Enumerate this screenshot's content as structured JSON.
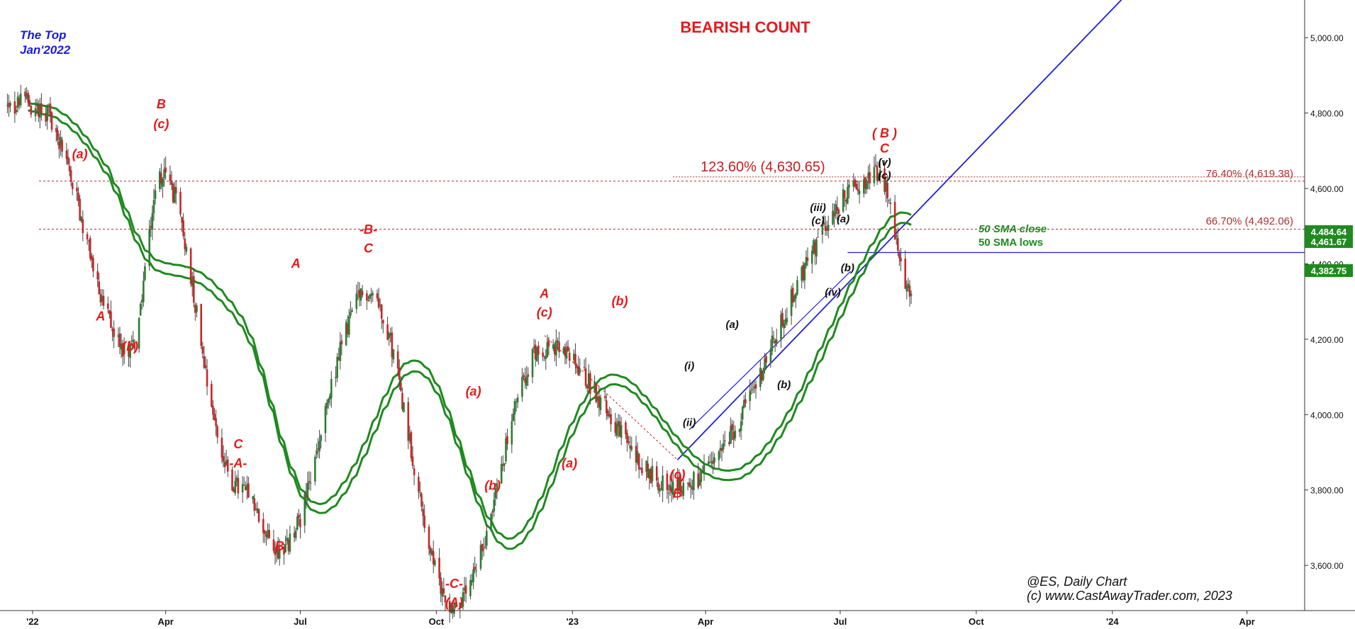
{
  "chart_data": {
    "type": "candlestick",
    "title": "BEARISH COUNT",
    "symbol_label": "@ES,  Daily Chart",
    "copyright": "(c) www.CastAwayTrader.com, 2023",
    "top_note": [
      "The Top",
      "Jan'2022"
    ],
    "y_ticks": [
      "5,000.00",
      "4,800.00",
      "4,600.00",
      "4,400.00",
      "4,200.00",
      "4,000.00",
      "3,800.00",
      "3,600.00"
    ],
    "x_ticks": [
      "'22",
      "Apr",
      "Jul",
      "Oct",
      "'23",
      "Apr",
      "Jul",
      "Oct",
      "'24",
      "Apr"
    ],
    "ylim": [
      3480,
      5100
    ],
    "price_labels": [
      "4,484.64",
      "4,461.67",
      "4,382.75"
    ],
    "fib_levels": [
      {
        "label": "76.40% (4,619.38)",
        "value": 4619.38
      },
      {
        "label": "66.70% (4,492.06)",
        "value": 4492.06
      },
      {
        "label": "123.60% (4,630.65)",
        "value": 4630.65
      }
    ],
    "sma_labels": [
      "50 SMA close",
      "50 SMA lows"
    ],
    "key_points": [
      {
        "date": "2022-01-04",
        "value": 4818
      },
      {
        "date": "2022-03-08",
        "value": 4170
      },
      {
        "date": "2022-03-29",
        "value": 4637
      },
      {
        "date": "2022-05-20",
        "value": 3807
      },
      {
        "date": "2022-06-17",
        "value": 3640
      },
      {
        "date": "2022-08-16",
        "value": 4325
      },
      {
        "date": "2022-10-13",
        "value": 3491
      },
      {
        "date": "2022-12-13",
        "value": 4180
      },
      {
        "date": "2023-03-13",
        "value": 3808
      },
      {
        "date": "2023-07-27",
        "value": 4634
      },
      {
        "date": "2023-08-18",
        "value": 4335
      }
    ],
    "wave_labels": [
      {
        "text": "B",
        "color": "red",
        "date": "2022-03-29",
        "value": 4812
      },
      {
        "text": "(c)",
        "color": "red",
        "date": "2022-03-29",
        "value": 4760
      },
      {
        "text": "(a)",
        "color": "red",
        "date": "2022-02-02",
        "value": 4680
      },
      {
        "text": "A",
        "color": "red",
        "date": "2022-02-16",
        "value": 4250
      },
      {
        "text": "(b)",
        "color": "red",
        "date": "2022-03-08",
        "value": 4170
      },
      {
        "text": "A",
        "color": "red",
        "date": "2022-06-28",
        "value": 4390
      },
      {
        "text": "C",
        "color": "red",
        "date": "2022-05-20",
        "value": 3910
      },
      {
        "text": "-A-",
        "color": "red",
        "date": "2022-05-20",
        "value": 3860
      },
      {
        "text": "B",
        "color": "red",
        "date": "2022-06-17",
        "value": 3640
      },
      {
        "text": "-B-",
        "color": "red",
        "date": "2022-08-16",
        "value": 4480
      },
      {
        "text": "C",
        "color": "red",
        "date": "2022-08-16",
        "value": 4430
      },
      {
        "text": "(a)",
        "color": "red",
        "date": "2022-10-26",
        "value": 4050
      },
      {
        "text": "(b)",
        "color": "red",
        "date": "2022-11-08",
        "value": 3800
      },
      {
        "text": "-C-",
        "color": "red",
        "date": "2022-10-13",
        "value": 3540
      },
      {
        "text": "(A)",
        "color": "red",
        "date": "2022-10-13",
        "value": 3490
      },
      {
        "text": "A",
        "color": "red",
        "date": "2022-12-13",
        "value": 4310
      },
      {
        "text": "(c)",
        "color": "red",
        "date": "2022-12-13",
        "value": 4260
      },
      {
        "text": "(a)",
        "color": "red",
        "date": "2022-12-30",
        "value": 3860
      },
      {
        "text": "(b)",
        "color": "red",
        "date": "2023-02-02",
        "value": 4290
      },
      {
        "text": "(c)",
        "color": "red",
        "date": "2023-03-13",
        "value": 3830
      },
      {
        "text": "B",
        "color": "red",
        "date": "2023-03-13",
        "value": 3780
      },
      {
        "text": "(i)",
        "color": "black",
        "date": "2023-03-21",
        "value": 4120
      },
      {
        "text": "(ii)",
        "color": "black",
        "date": "2023-03-21",
        "value": 3970
      },
      {
        "text": "(a)",
        "color": "black",
        "date": "2023-04-19",
        "value": 4230
      },
      {
        "text": "(b)",
        "color": "black",
        "date": "2023-05-24",
        "value": 4070
      },
      {
        "text": "(iii)",
        "color": "black",
        "date": "2023-06-16",
        "value": 4540
      },
      {
        "text": "(c)",
        "color": "black",
        "date": "2023-06-16",
        "value": 4505
      },
      {
        "text": "(a)",
        "color": "black",
        "date": "2023-07-03",
        "value": 4510
      },
      {
        "text": "(b)",
        "color": "black",
        "date": "2023-07-06",
        "value": 4380
      },
      {
        "text": "(iv)",
        "color": "black",
        "date": "2023-06-26",
        "value": 4315
      },
      {
        "text": "( B )",
        "color": "red",
        "date": "2023-07-31",
        "value": 4735
      },
      {
        "text": "C",
        "color": "red",
        "date": "2023-07-31",
        "value": 4695
      },
      {
        "text": "(v)",
        "color": "black",
        "date": "2023-07-31",
        "value": 4660
      },
      {
        "text": "(c)",
        "color": "black",
        "date": "2023-07-31",
        "value": 4625
      }
    ]
  },
  "colors": {
    "candle_up": "#2e7d32",
    "candle_down": "#c62828",
    "sma": "#1f8a1f",
    "trend": "#1f1fd6",
    "wave_red": "#e31a1a",
    "wave_black": "#111111",
    "fib": "#b03030",
    "title": "#e31a1a",
    "top_note": "#1a1adf"
  }
}
